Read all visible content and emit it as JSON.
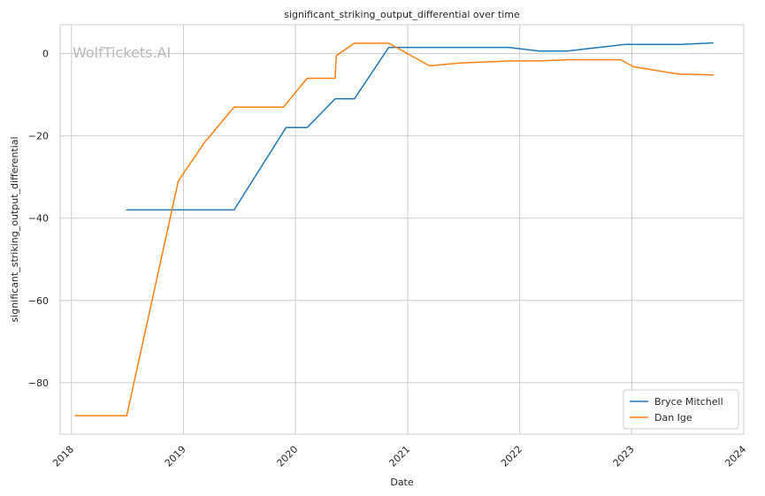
{
  "chart_data": {
    "type": "line",
    "title": "significant_striking_output_differential over time",
    "xlabel": "Date",
    "ylabel": "significant_striking_output_differential",
    "watermark": "WolfTickets.AI",
    "xlim": [
      "2017-11-25",
      "2024-01-01"
    ],
    "ylim": [
      -92.5,
      7.0
    ],
    "x_ticks": [
      "2018-01-01",
      "2019-01-01",
      "2020-01-01",
      "2021-01-01",
      "2022-01-01",
      "2023-01-01",
      "2024-01-01"
    ],
    "x_tick_labels": [
      "2018",
      "2019",
      "2020",
      "2021",
      "2022",
      "2023",
      "2024"
    ],
    "y_ticks": [
      0,
      -20,
      -40,
      -60,
      -80
    ],
    "y_tick_labels": [
      "0",
      "−20",
      "−40",
      "−60",
      "−80"
    ],
    "grid": true,
    "legend_position": "lower-right",
    "series": [
      {
        "name": "Bryce Mitchell",
        "color": "#1f77b4",
        "points": [
          [
            "2018-06-30",
            -38
          ],
          [
            "2019-06-15",
            -38
          ],
          [
            "2019-12-01",
            -18
          ],
          [
            "2020-02-08",
            -18
          ],
          [
            "2020-05-09",
            -11
          ],
          [
            "2020-07-11",
            -11
          ],
          [
            "2020-10-31",
            1.5
          ],
          [
            "2021-11-25",
            1.5
          ],
          [
            "2022-03-05",
            0.6
          ],
          [
            "2022-06-04",
            0.6
          ],
          [
            "2022-12-10",
            2.2
          ],
          [
            "2023-06-10",
            2.2
          ],
          [
            "2023-09-23",
            2.6
          ]
        ]
      },
      {
        "name": "Dan Ige",
        "color": "#ff7f0e",
        "points": [
          [
            "2018-01-14",
            -88
          ],
          [
            "2018-06-30",
            -88
          ],
          [
            "2018-12-15",
            -31
          ],
          [
            "2019-03-16",
            -21
          ],
          [
            "2019-03-23",
            -20.5
          ],
          [
            "2019-06-15",
            -13
          ],
          [
            "2019-11-23",
            -13
          ],
          [
            "2020-02-08",
            -6
          ],
          [
            "2020-05-09",
            -6
          ],
          [
            "2020-05-13",
            -0.5
          ],
          [
            "2020-07-11",
            2.5
          ],
          [
            "2020-10-31",
            2.5
          ],
          [
            "2021-03-13",
            -3
          ],
          [
            "2021-06-19",
            -2.3
          ],
          [
            "2021-12-04",
            -1.8
          ],
          [
            "2022-03-05",
            -1.8
          ],
          [
            "2022-06-04",
            -1.5
          ],
          [
            "2022-11-26",
            -1.5
          ],
          [
            "2023-01-07",
            -3.2
          ],
          [
            "2023-06-03",
            -5
          ],
          [
            "2023-09-23",
            -5.2
          ]
        ]
      }
    ]
  }
}
